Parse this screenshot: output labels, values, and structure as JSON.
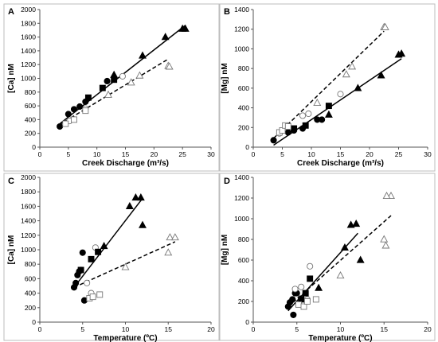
{
  "chart_data": [
    {
      "panel": "A",
      "type": "scatter",
      "xlabel": "Creek Discharge (m³/s)",
      "ylabel": "[Ca] nM",
      "xlim": [
        0,
        30
      ],
      "ylim": [
        0,
        2000
      ],
      "xticks": [
        "0",
        "5",
        "10",
        "15",
        "20",
        "25",
        "30"
      ],
      "yticks": [
        "0",
        "200",
        "400",
        "600",
        "800",
        "1000",
        "1200",
        "1400",
        "1600",
        "1800",
        "2000"
      ],
      "series": [
        {
          "marker": "filled-circle",
          "x": [
            3.5,
            5,
            6,
            7,
            8,
            11.8
          ],
          "y": [
            300,
            480,
            550,
            590,
            660,
            960
          ]
        },
        {
          "marker": "open-circle",
          "x": [
            5.2,
            8,
            14.5
          ],
          "y": [
            380,
            560,
            1030
          ]
        },
        {
          "marker": "filled-square",
          "x": [
            8.5,
            11,
            13
          ],
          "y": [
            720,
            860,
            980
          ]
        },
        {
          "marker": "open-square",
          "x": [
            4.5,
            6,
            8
          ],
          "y": [
            340,
            400,
            530
          ]
        },
        {
          "marker": "filled-triangle",
          "x": [
            13,
            18,
            22,
            25,
            25.5
          ],
          "y": [
            1050,
            1330,
            1600,
            1720,
            1720
          ]
        },
        {
          "marker": "open-triangle",
          "x": [
            12,
            16,
            17.5,
            22.5,
            22.7
          ],
          "y": [
            760,
            940,
            1040,
            1180,
            1170
          ]
        }
      ],
      "fit_lines": [
        {
          "style": "solid",
          "x": [
            3.5,
            25.5
          ],
          "y": [
            340,
            1770
          ]
        },
        {
          "style": "dashed",
          "x": [
            3.5,
            22.5
          ],
          "y": [
            330,
            1280
          ]
        }
      ]
    },
    {
      "panel": "B",
      "type": "scatter",
      "xlabel": "Creek Discharge (m³/s)",
      "ylabel": "[Mg] nM",
      "xlim": [
        0,
        30
      ],
      "ylim": [
        0,
        1400
      ],
      "xticks": [
        "0",
        "5",
        "10",
        "15",
        "20",
        "25",
        "30"
      ],
      "yticks": [
        "0",
        "200",
        "400",
        "600",
        "800",
        "1000",
        "1200",
        "1400"
      ],
      "series": [
        {
          "marker": "filled-circle",
          "x": [
            3.5,
            6,
            7,
            8.5,
            11,
            11.8
          ],
          "y": [
            70,
            150,
            170,
            190,
            280,
            280
          ]
        },
        {
          "marker": "open-circle",
          "x": [
            4.5,
            8.5,
            9.5,
            15
          ],
          "y": [
            140,
            320,
            340,
            540
          ]
        },
        {
          "marker": "filled-square",
          "x": [
            7,
            9,
            13
          ],
          "y": [
            190,
            220,
            420
          ]
        },
        {
          "marker": "open-square",
          "x": [
            4.5,
            5,
            5.5,
            6
          ],
          "y": [
            150,
            170,
            220,
            210
          ]
        },
        {
          "marker": "filled-triangle",
          "x": [
            13,
            18,
            22,
            25,
            25.5
          ],
          "y": [
            330,
            600,
            730,
            940,
            950
          ]
        },
        {
          "marker": "open-triangle",
          "x": [
            11,
            16,
            17,
            22.5,
            22.7
          ],
          "y": [
            450,
            740,
            820,
            1220,
            1220
          ]
        }
      ],
      "fit_lines": [
        {
          "style": "solid",
          "x": [
            3.5,
            25.5
          ],
          "y": [
            20,
            900
          ]
        },
        {
          "style": "dashed",
          "x": [
            3.5,
            22.5
          ],
          "y": [
            90,
            1180
          ]
        }
      ]
    },
    {
      "panel": "C",
      "type": "scatter",
      "xlabel": "Temperature (ºC)",
      "ylabel": "[Ca] nM",
      "xlim": [
        0,
        20
      ],
      "ylim": [
        0,
        2000
      ],
      "xticks": [
        "0",
        "5",
        "10",
        "15",
        "20"
      ],
      "yticks": [
        "0",
        "200",
        "400",
        "600",
        "800",
        "1000",
        "1200",
        "1400",
        "1600",
        "1800",
        "2000"
      ],
      "series": [
        {
          "marker": "filled-circle",
          "x": [
            4,
            4.2,
            4.4,
            4.6,
            4.8,
            5,
            5.2
          ],
          "y": [
            480,
            540,
            650,
            700,
            720,
            960,
            300
          ]
        },
        {
          "marker": "open-circle",
          "x": [
            5.5,
            6.5,
            6
          ],
          "y": [
            540,
            1030,
            400
          ]
        },
        {
          "marker": "filled-square",
          "x": [
            4.8,
            6,
            6.8
          ],
          "y": [
            720,
            870,
            970
          ]
        },
        {
          "marker": "open-square",
          "x": [
            5.8,
            6.2,
            7
          ],
          "y": [
            330,
            350,
            380
          ]
        },
        {
          "marker": "filled-triangle",
          "x": [
            7.5,
            10.5,
            11.2,
            11.8,
            12
          ],
          "y": [
            1050,
            1600,
            1720,
            1720,
            1340
          ]
        },
        {
          "marker": "open-triangle",
          "x": [
            10,
            15,
            15.2,
            15.8
          ],
          "y": [
            760,
            960,
            1170,
            1170
          ]
        }
      ],
      "fit_lines": [
        {
          "style": "solid",
          "x": [
            4,
            12
          ],
          "y": [
            480,
            1710
          ]
        },
        {
          "style": "dashed",
          "x": [
            4,
            15.8
          ],
          "y": [
            480,
            1110
          ]
        }
      ]
    },
    {
      "panel": "D",
      "type": "scatter",
      "xlabel": "Temperature (ºC)",
      "ylabel": "[Mg] nM",
      "xlim": [
        0,
        20
      ],
      "ylim": [
        0,
        1400
      ],
      "xticks": [
        "0",
        "5",
        "10",
        "15",
        "20"
      ],
      "yticks": [
        "0",
        "200",
        "400",
        "600",
        "800",
        "1000",
        "1200",
        "1400"
      ],
      "series": [
        {
          "marker": "filled-circle",
          "x": [
            4,
            4.2,
            4.5,
            4.8,
            5,
            4.6
          ],
          "y": [
            150,
            190,
            220,
            280,
            280,
            70
          ]
        },
        {
          "marker": "open-circle",
          "x": [
            4.8,
            5.5,
            6.5,
            6.2
          ],
          "y": [
            320,
            340,
            540,
            220
          ]
        },
        {
          "marker": "filled-square",
          "x": [
            5.5,
            6,
            6.5
          ],
          "y": [
            220,
            280,
            420
          ]
        },
        {
          "marker": "open-square",
          "x": [
            5.2,
            5.8,
            6.2,
            7.2
          ],
          "y": [
            170,
            150,
            200,
            220
          ]
        },
        {
          "marker": "filled-triangle",
          "x": [
            7.5,
            10.5,
            11.2,
            11.8,
            12.3
          ],
          "y": [
            330,
            720,
            940,
            950,
            600
          ]
        },
        {
          "marker": "open-triangle",
          "x": [
            10,
            15,
            15.2,
            15.8,
            15.3
          ],
          "y": [
            450,
            800,
            740,
            1220,
            1220
          ]
        }
      ],
      "fit_lines": [
        {
          "style": "solid",
          "x": [
            4,
            12
          ],
          "y": [
            110,
            860
          ]
        },
        {
          "style": "dashed",
          "x": [
            4,
            15.8
          ],
          "y": [
            150,
            1030
          ]
        }
      ]
    }
  ]
}
